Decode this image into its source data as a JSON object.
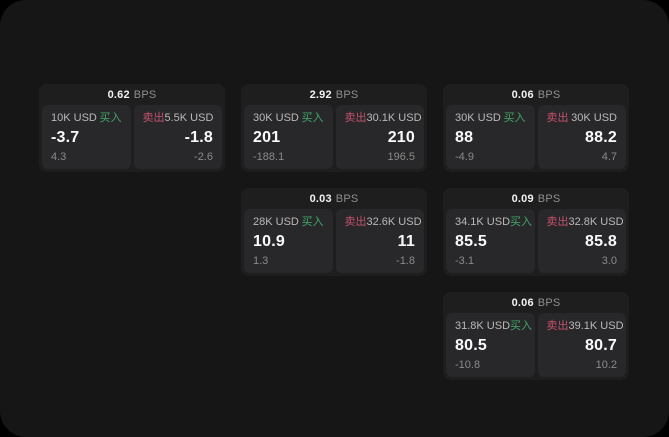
{
  "labels": {
    "bps_unit": "BPS",
    "buy": "买入",
    "sell": "卖出"
  },
  "colors": {
    "surface": "#161617",
    "card": "#1e1e1f",
    "panel": "#28282a",
    "buy_accent": "#42a768",
    "sell_accent": "#c4516b"
  },
  "cards": [
    {
      "bps": "0.62",
      "buy": {
        "size": "10K USD",
        "price": "-3.7",
        "sub": "4.3"
      },
      "sell": {
        "size": "5.5K USD",
        "price": "-1.8",
        "sub": "-2.6"
      }
    },
    {
      "bps": "2.92",
      "buy": {
        "size": "30K USD",
        "price": "201",
        "sub": "-188.1"
      },
      "sell": {
        "size": "30.1K USD",
        "price": "210",
        "sub": "196.5"
      }
    },
    {
      "bps": "0.06",
      "buy": {
        "size": "30K USD",
        "price": "88",
        "sub": "-4.9"
      },
      "sell": {
        "size": "30K USD",
        "price": "88.2",
        "sub": "4.7"
      }
    },
    {
      "bps": "0.03",
      "buy": {
        "size": "28K USD",
        "price": "10.9",
        "sub": "1.3"
      },
      "sell": {
        "size": "32.6K USD",
        "price": "11",
        "sub": "-1.8"
      }
    },
    {
      "bps": "0.09",
      "buy": {
        "size": "34.1K USD",
        "price": "85.5",
        "sub": "-3.1"
      },
      "sell": {
        "size": "32.8K USD",
        "price": "85.8",
        "sub": "3.0"
      }
    },
    {
      "bps": "0.06",
      "buy": {
        "size": "31.8K USD",
        "price": "80.5",
        "sub": "-10.8"
      },
      "sell": {
        "size": "39.1K USD",
        "price": "80.7",
        "sub": "10.2"
      }
    }
  ]
}
